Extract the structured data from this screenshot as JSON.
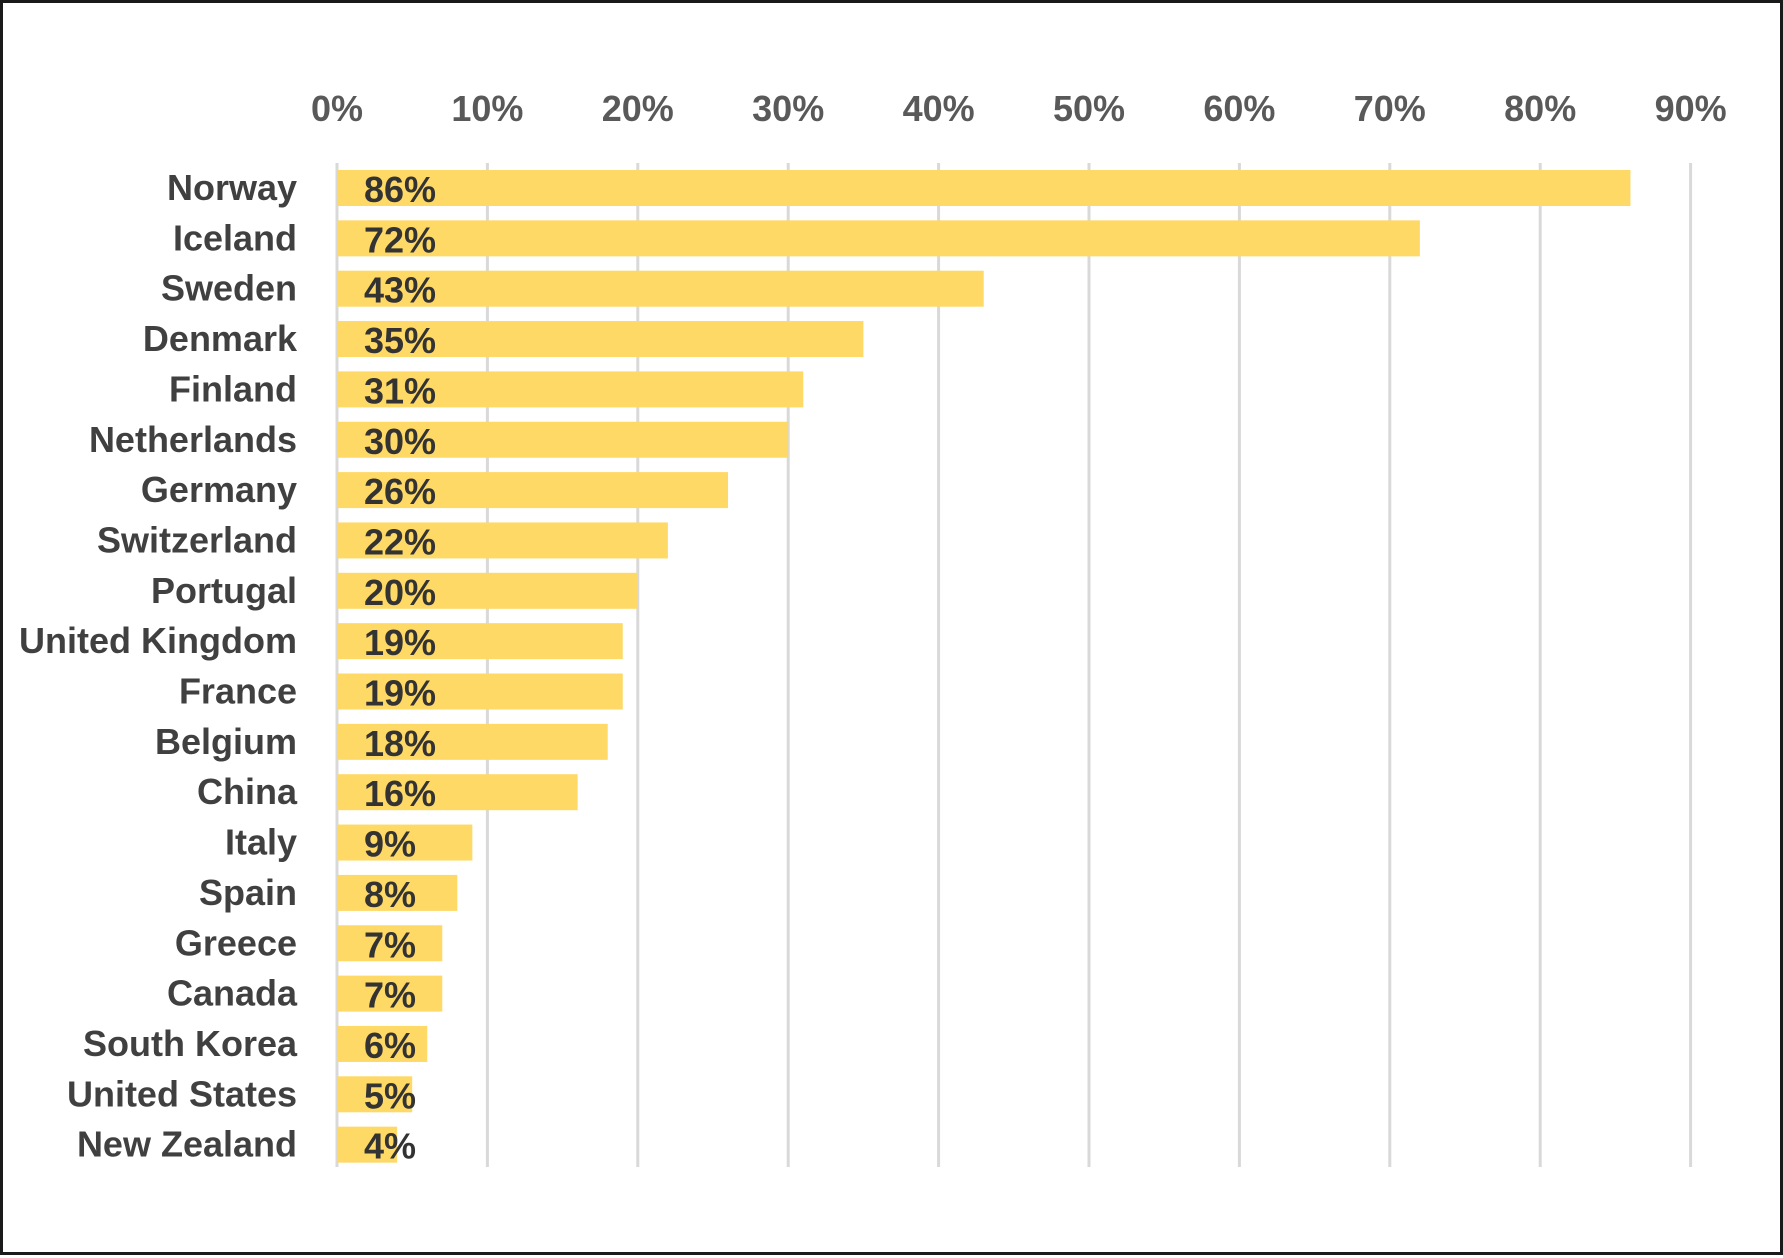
{
  "chart_data": {
    "type": "bar",
    "orientation": "horizontal",
    "categories": [
      "Norway",
      "Iceland",
      "Sweden",
      "Denmark",
      "Finland",
      "Netherlands",
      "Germany",
      "Switzerland",
      "Portugal",
      "United Kingdom",
      "France",
      "Belgium",
      "China",
      "Italy",
      "Spain",
      "Greece",
      "Canada",
      "South Korea",
      "United States",
      "New Zealand"
    ],
    "values": [
      86,
      72,
      43,
      35,
      31,
      30,
      26,
      22,
      20,
      19,
      19,
      18,
      16,
      9,
      8,
      7,
      7,
      6,
      5,
      4
    ],
    "data_labels": [
      "86%",
      "72%",
      "43%",
      "35%",
      "31%",
      "30%",
      "26%",
      "22%",
      "20%",
      "19%",
      "19%",
      "18%",
      "16%",
      "9%",
      "8%",
      "7%",
      "7%",
      "6%",
      "5%",
      "4%"
    ],
    "xticks": [
      "0%",
      "10%",
      "20%",
      "30%",
      "40%",
      "50%",
      "60%",
      "70%",
      "80%",
      "90%"
    ],
    "xlim": [
      0,
      90
    ],
    "x_axis_position": "top",
    "grid": true,
    "bar_color": "#ffd966",
    "title": "",
    "xlabel": "",
    "ylabel": ""
  }
}
